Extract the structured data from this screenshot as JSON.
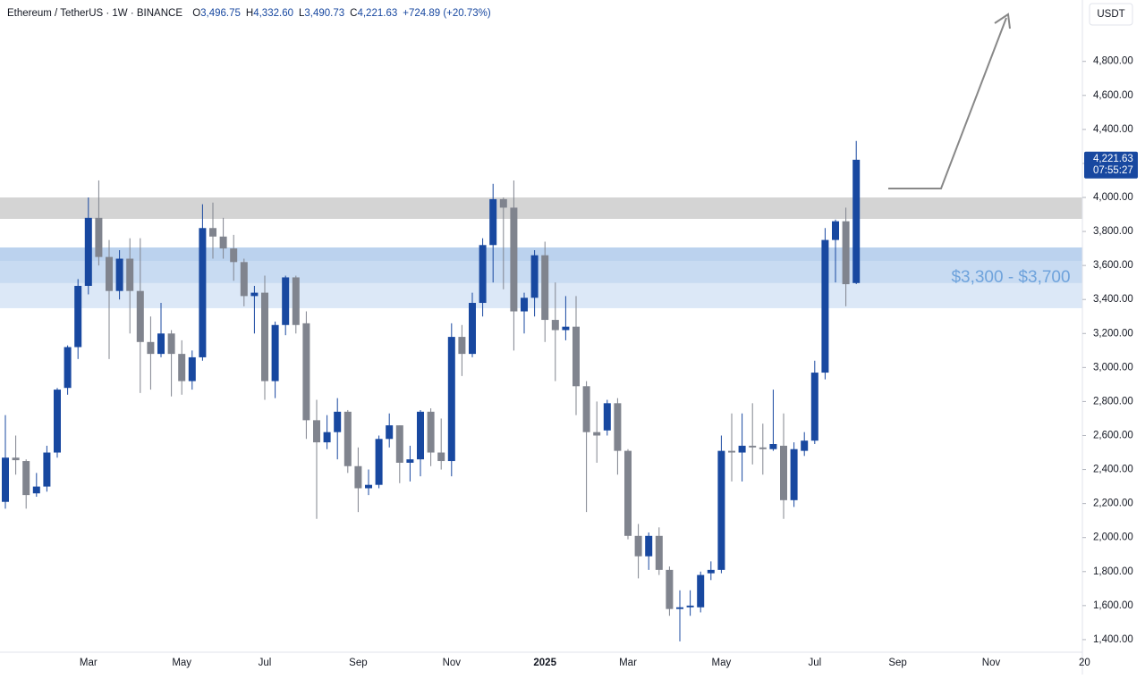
{
  "chart_data": {
    "type": "candlestick",
    "header": {
      "symbol": "Ethereum / TetherUS · 1W · BINANCE",
      "ohlc": [
        {
          "key": "O",
          "value": "3,496.75"
        },
        {
          "key": "H",
          "value": "4,332.60"
        },
        {
          "key": "L",
          "value": "3,490.73"
        },
        {
          "key": "C",
          "value": "4,221.63"
        }
      ],
      "change": "+724.89 (+20.73%)"
    },
    "currency": "USDT",
    "categories": [
      null,
      null,
      null,
      null,
      null,
      null,
      null,
      null,
      "Mar",
      null,
      null,
      null,
      null,
      null,
      null,
      null,
      null,
      "May",
      null,
      null,
      null,
      null,
      null,
      null,
      null,
      "Jul",
      null,
      null,
      null,
      null,
      null,
      null,
      null,
      null,
      "Sep",
      null,
      null,
      null,
      null,
      null,
      null,
      null,
      null,
      "Nov",
      null,
      null,
      null,
      null,
      null,
      null,
      null,
      null,
      "2025",
      null,
      null,
      null,
      null,
      null,
      null,
      null,
      "Mar",
      null,
      null,
      null,
      null,
      null,
      null,
      null,
      null,
      "May",
      null,
      null,
      null,
      null,
      null,
      null,
      null,
      null,
      "Jul",
      null,
      null,
      null,
      null,
      null,
      null,
      null,
      "Sep",
      null,
      null,
      null,
      null,
      null,
      null,
      null,
      null,
      "Nov",
      null,
      null,
      null,
      null,
      null,
      null,
      null,
      null,
      "20"
    ],
    "open": [
      2210,
      2470,
      2450,
      2260,
      2300,
      2500,
      2880,
      3120,
      3480,
      3880,
      3650,
      3450,
      3640,
      3450,
      3150,
      3080,
      3200,
      3080,
      2920,
      3060,
      3820,
      3770,
      3700,
      3620,
      3420,
      3440,
      2920,
      3250,
      3530,
      3260,
      2690,
      2560,
      2620,
      2740,
      2420,
      2290,
      2310,
      2580,
      2660,
      2440,
      2460,
      2740,
      2500,
      2450,
      3180,
      3080,
      3380,
      3720,
      3990,
      3940,
      3330,
      3410,
      3660,
      3280,
      3220,
      3240,
      2890,
      2620,
      2630,
      2790,
      2510,
      2010,
      1890,
      2010,
      1810,
      1580,
      1590,
      1590,
      1790,
      1810,
      2510,
      2500,
      2540,
      2530,
      2520,
      2540,
      2220,
      2510,
      2570,
      2970,
      3750,
      3860,
      3496.75,
      null,
      null,
      null,
      null,
      null,
      null,
      null,
      null,
      null,
      null,
      null,
      null,
      null,
      null,
      null,
      null,
      null,
      null,
      null,
      null,
      null,
      null
    ],
    "high": [
      2720,
      2600,
      2460,
      2380,
      2540,
      2880,
      3130,
      3520,
      4000,
      4100,
      3750,
      3690,
      3760,
      3760,
      3300,
      3380,
      3220,
      3160,
      3100,
      3960,
      3970,
      3880,
      3780,
      3640,
      3480,
      3540,
      3270,
      3540,
      3540,
      3330,
      2810,
      2720,
      2820,
      2750,
      2530,
      2400,
      2600,
      2730,
      2660,
      2540,
      2750,
      2760,
      2700,
      3260,
      3250,
      3440,
      3760,
      4080,
      4000,
      4100,
      3440,
      3690,
      3740,
      3500,
      3420,
      3420,
      2920,
      2800,
      2810,
      2820,
      2520,
      2080,
      2030,
      2060,
      1830,
      1690,
      1690,
      1800,
      1860,
      2600,
      2730,
      2730,
      2790,
      2670,
      2870,
      2730,
      2560,
      2620,
      3040,
      3820,
      3870,
      3940,
      4332.6,
      null,
      null,
      null,
      null,
      null,
      null,
      null,
      null,
      null,
      null,
      null,
      null,
      null,
      null,
      null,
      null,
      null,
      null,
      null,
      null,
      null,
      null
    ],
    "low": [
      2170,
      2370,
      2170,
      2240,
      2270,
      2470,
      2840,
      3050,
      3430,
      3600,
      3050,
      3400,
      3200,
      2850,
      2870,
      3060,
      2830,
      2840,
      2870,
      3040,
      3640,
      3640,
      3510,
      3360,
      3200,
      2810,
      2820,
      3190,
      3200,
      2580,
      2110,
      2520,
      2460,
      2380,
      2150,
      2250,
      2290,
      2530,
      2320,
      2330,
      2360,
      2420,
      2400,
      2360,
      2950,
      3060,
      3300,
      3500,
      3460,
      3100,
      3200,
      3300,
      3150,
      2920,
      3160,
      2720,
      2150,
      2440,
      2600,
      2370,
      1990,
      1760,
      1810,
      1780,
      1540,
      1390,
      1540,
      1560,
      1750,
      1790,
      2330,
      2330,
      2430,
      2370,
      2510,
      2110,
      2180,
      2480,
      2550,
      2930,
      3500,
      3360,
      3490.73,
      null,
      null,
      null,
      null,
      null,
      null,
      null,
      null,
      null,
      null,
      null,
      null,
      null,
      null,
      null,
      null,
      null,
      null,
      null,
      null,
      null,
      null
    ],
    "close": [
      2470,
      2455,
      2250,
      2300,
      2500,
      2870,
      3120,
      3480,
      3880,
      3650,
      3450,
      3640,
      3450,
      3150,
      3080,
      3200,
      3080,
      2920,
      3060,
      3820,
      3770,
      3700,
      3620,
      3420,
      3440,
      2920,
      3250,
      3530,
      3250,
      2690,
      2560,
      2620,
      2740,
      2420,
      2290,
      2310,
      2580,
      2660,
      2440,
      2460,
      2740,
      2500,
      2450,
      3180,
      3080,
      3380,
      3720,
      3990,
      3940,
      3330,
      3410,
      3660,
      3280,
      3220,
      3240,
      2890,
      2620,
      2600,
      2790,
      2510,
      2010,
      1890,
      2010,
      1810,
      1580,
      1590,
      1600,
      1780,
      1810,
      2510,
      2500,
      2540,
      2530,
      2520,
      2550,
      2220,
      2520,
      2570,
      2970,
      3750,
      3860,
      3490,
      4221.63,
      null,
      null,
      null,
      null,
      null,
      null,
      null,
      null,
      null,
      null,
      null,
      null,
      null,
      null,
      null,
      null,
      null,
      null,
      null,
      null,
      null,
      null
    ],
    "up_color": "#1848a0",
    "down_color": "#80848e",
    "ylim": [
      1326,
      5161
    ],
    "yticks": [
      {
        "value": 1400,
        "label": "1,400.00"
      },
      {
        "value": 1600,
        "label": "1,600.00"
      },
      {
        "value": 1800,
        "label": "1,800.00"
      },
      {
        "value": 2000,
        "label": "2,000.00"
      },
      {
        "value": 2200,
        "label": "2,200.00"
      },
      {
        "value": 2400,
        "label": "2,400.00"
      },
      {
        "value": 2600,
        "label": "2,600.00"
      },
      {
        "value": 2800,
        "label": "2,800.00"
      },
      {
        "value": 3000,
        "label": "3,000.00"
      },
      {
        "value": 3200,
        "label": "3,200.00"
      },
      {
        "value": 3400,
        "label": "3,400.00"
      },
      {
        "value": 3600,
        "label": "3,600.00"
      },
      {
        "value": 3800,
        "label": "3,800.00"
      },
      {
        "value": 4000,
        "label": "4,000.00"
      },
      {
        "value": 4200,
        "label": "4,200.00"
      },
      {
        "value": 4400,
        "label": "4,400.00"
      },
      {
        "value": 4600,
        "label": "4,600.00"
      },
      {
        "value": 4800,
        "label": "4,800.00"
      }
    ],
    "zones": [
      {
        "from": 3874,
        "to": 4000,
        "color": "#d4d4d4"
      },
      {
        "from": 3627,
        "to": 3706,
        "color": "#bbd2ee"
      },
      {
        "from": 3496,
        "to": 3627,
        "color": "#c8dbf2"
      },
      {
        "from": 3349,
        "to": 3496,
        "color": "#dce8f7"
      }
    ],
    "zone_label": "$3,300 - $3,700",
    "last_price": {
      "label": "4,221.63",
      "countdown": "07:55:27"
    }
  }
}
